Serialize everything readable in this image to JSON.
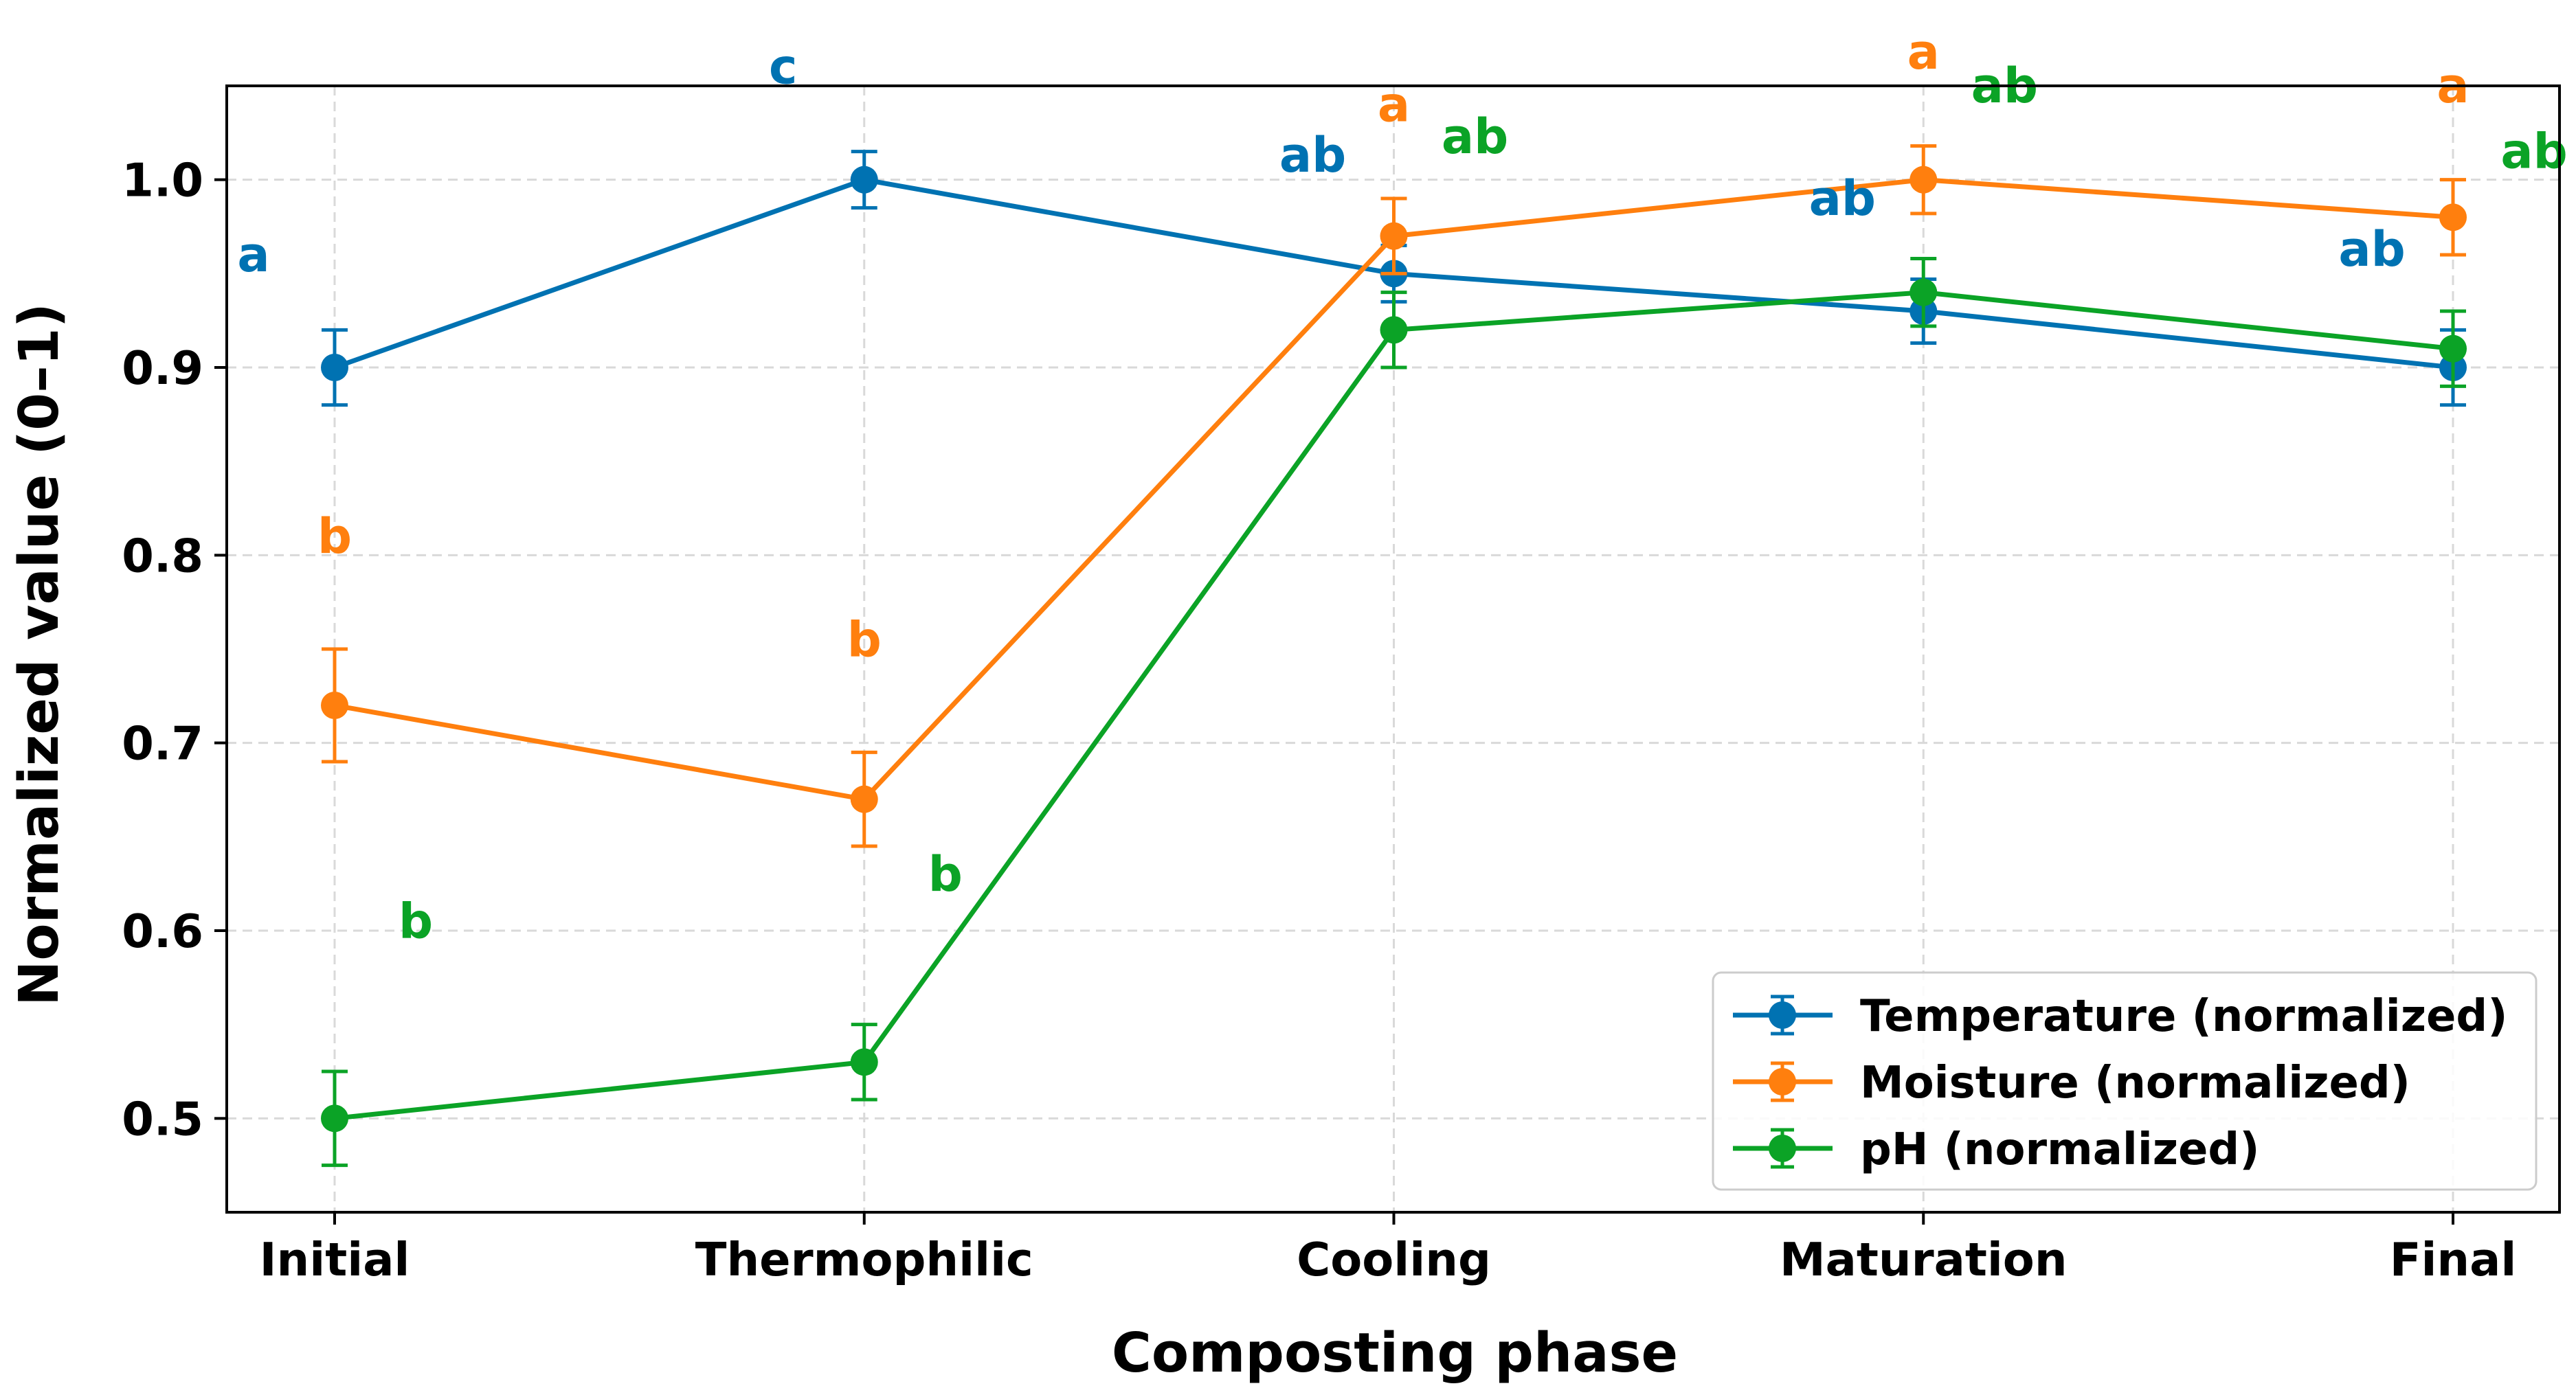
{
  "chart_data": {
    "type": "line",
    "title": "",
    "xlabel": "Composting phase",
    "ylabel": "Normalized value (0–1)",
    "categories": [
      "Initial",
      "Thermophilic",
      "Cooling",
      "Maturation",
      "Final"
    ],
    "ylim": [
      0.45,
      1.05
    ],
    "yticks": [
      0.5,
      0.6,
      0.7,
      0.8,
      0.9,
      1.0
    ],
    "ytick_labels": [
      "0.5",
      "0.6",
      "0.7",
      "0.8",
      "0.9",
      "1.0"
    ],
    "grid": true,
    "legend_position": "bottom-right",
    "series": [
      {
        "name": "Temperature (normalized)",
        "color": "#0072B2",
        "values": [
          0.9,
          1.0,
          0.95,
          0.93,
          0.9
        ],
        "errors": [
          0.02,
          0.015,
          0.015,
          0.017,
          0.02
        ],
        "letters": [
          "a",
          "c",
          "ab",
          "ab",
          "ab"
        ],
        "letter_positions": [
          0.96,
          1.06,
          1.013,
          0.99,
          0.963
        ]
      },
      {
        "name": "Moisture (normalized)",
        "color": "#FF7F0E",
        "values": [
          0.72,
          0.67,
          0.97,
          1.0,
          0.98
        ],
        "errors": [
          0.03,
          0.025,
          0.02,
          0.018,
          0.02
        ],
        "letters": [
          "b",
          "b",
          "a",
          "a",
          "a"
        ],
        "letter_positions": [
          0.81,
          0.755,
          1.04,
          1.068,
          1.05
        ]
      },
      {
        "name": "pH (normalized)",
        "color": "#0BA326",
        "values": [
          0.5,
          0.53,
          0.92,
          0.94,
          0.91
        ],
        "errors": [
          0.025,
          0.02,
          0.02,
          0.018,
          0.02
        ],
        "letters": [
          "b",
          "b",
          "ab",
          "ab",
          "ab"
        ],
        "letter_positions": [
          0.605,
          0.63,
          1.023,
          1.05,
          1.015
        ]
      }
    ]
  }
}
